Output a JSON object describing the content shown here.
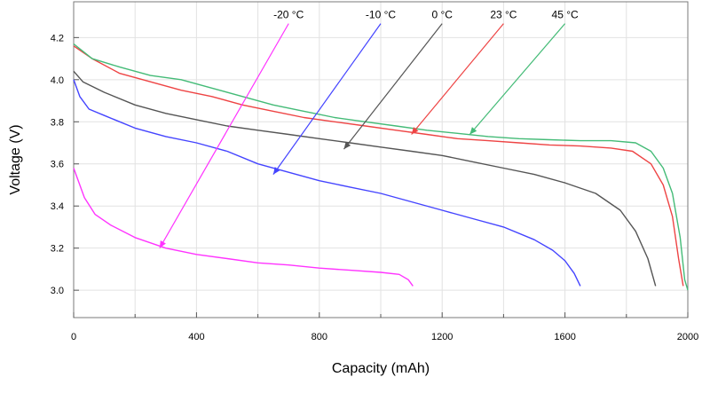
{
  "chart_data": {
    "type": "line",
    "title": "",
    "xlabel": "Capacity (mAh)",
    "ylabel": "Voltage (V)",
    "xlim": [
      0,
      2000
    ],
    "ylim": [
      2.87,
      4.37
    ],
    "x_ticks": [
      0,
      400,
      800,
      1200,
      1600,
      2000
    ],
    "x_minor_ticks": [
      200,
      600,
      1000,
      1400,
      1800
    ],
    "y_ticks": [
      3.0,
      3.2,
      3.4,
      3.6,
      3.8,
      4.0,
      4.2
    ],
    "x_tick_labels": [
      "0",
      "400",
      "800",
      "1200",
      "1600",
      "2000"
    ],
    "y_tick_labels": [
      "3.0",
      "3.2",
      "3.4",
      "3.6",
      "3.8",
      "4.0",
      "4.2"
    ],
    "grid": true,
    "series": [
      {
        "name": "-20 °C",
        "color": "#ff33ff",
        "points": [
          [
            0,
            3.58
          ],
          [
            15,
            3.52
          ],
          [
            35,
            3.44
          ],
          [
            70,
            3.36
          ],
          [
            120,
            3.31
          ],
          [
            200,
            3.25
          ],
          [
            300,
            3.2
          ],
          [
            400,
            3.17
          ],
          [
            500,
            3.15
          ],
          [
            600,
            3.13
          ],
          [
            700,
            3.12
          ],
          [
            800,
            3.105
          ],
          [
            900,
            3.095
          ],
          [
            1000,
            3.085
          ],
          [
            1060,
            3.075
          ],
          [
            1090,
            3.05
          ],
          [
            1105,
            3.02
          ]
        ],
        "label_anchor": [
          700,
          4.3
        ],
        "arrow_tip": [
          280,
          3.2
        ]
      },
      {
        "name": "-10 °C",
        "color": "#4444ff",
        "points": [
          [
            0,
            4.0
          ],
          [
            20,
            3.92
          ],
          [
            50,
            3.86
          ],
          [
            100,
            3.83
          ],
          [
            200,
            3.77
          ],
          [
            300,
            3.73
          ],
          [
            400,
            3.7
          ],
          [
            500,
            3.66
          ],
          [
            600,
            3.6
          ],
          [
            700,
            3.56
          ],
          [
            800,
            3.52
          ],
          [
            900,
            3.49
          ],
          [
            1000,
            3.46
          ],
          [
            1100,
            3.42
          ],
          [
            1200,
            3.38
          ],
          [
            1300,
            3.34
          ],
          [
            1400,
            3.3
          ],
          [
            1500,
            3.24
          ],
          [
            1560,
            3.19
          ],
          [
            1600,
            3.14
          ],
          [
            1630,
            3.08
          ],
          [
            1650,
            3.02
          ]
        ],
        "label_anchor": [
          1000,
          4.3
        ],
        "arrow_tip": [
          650,
          3.55
        ]
      },
      {
        "name": "0 °C",
        "color": "#555555",
        "points": [
          [
            0,
            4.04
          ],
          [
            30,
            3.99
          ],
          [
            100,
            3.94
          ],
          [
            200,
            3.88
          ],
          [
            300,
            3.84
          ],
          [
            400,
            3.81
          ],
          [
            500,
            3.78
          ],
          [
            600,
            3.76
          ],
          [
            700,
            3.74
          ],
          [
            800,
            3.72
          ],
          [
            900,
            3.7
          ],
          [
            1000,
            3.68
          ],
          [
            1100,
            3.66
          ],
          [
            1200,
            3.64
          ],
          [
            1300,
            3.61
          ],
          [
            1400,
            3.58
          ],
          [
            1500,
            3.55
          ],
          [
            1600,
            3.51
          ],
          [
            1700,
            3.46
          ],
          [
            1780,
            3.38
          ],
          [
            1830,
            3.28
          ],
          [
            1870,
            3.15
          ],
          [
            1895,
            3.02
          ]
        ],
        "label_anchor": [
          1200,
          4.3
        ],
        "arrow_tip": [
          880,
          3.67
        ]
      },
      {
        "name": "23 °C",
        "color": "#ee4444",
        "points": [
          [
            0,
            4.16
          ],
          [
            60,
            4.1
          ],
          [
            150,
            4.03
          ],
          [
            250,
            3.99
          ],
          [
            350,
            3.95
          ],
          [
            450,
            3.92
          ],
          [
            550,
            3.88
          ],
          [
            650,
            3.85
          ],
          [
            750,
            3.82
          ],
          [
            850,
            3.8
          ],
          [
            950,
            3.78
          ],
          [
            1050,
            3.76
          ],
          [
            1150,
            3.74
          ],
          [
            1250,
            3.72
          ],
          [
            1350,
            3.71
          ],
          [
            1450,
            3.7
          ],
          [
            1550,
            3.69
          ],
          [
            1650,
            3.685
          ],
          [
            1750,
            3.675
          ],
          [
            1820,
            3.66
          ],
          [
            1880,
            3.6
          ],
          [
            1920,
            3.5
          ],
          [
            1950,
            3.35
          ],
          [
            1970,
            3.15
          ],
          [
            1985,
            3.02
          ]
        ],
        "label_anchor": [
          1400,
          4.3
        ],
        "arrow_tip": [
          1100,
          3.74
        ]
      },
      {
        "name": "45 °C",
        "color": "#44bb77",
        "points": [
          [
            0,
            4.17
          ],
          [
            60,
            4.1
          ],
          [
            150,
            4.06
          ],
          [
            250,
            4.02
          ],
          [
            350,
            4.0
          ],
          [
            450,
            3.96
          ],
          [
            550,
            3.92
          ],
          [
            650,
            3.88
          ],
          [
            750,
            3.85
          ],
          [
            850,
            3.82
          ],
          [
            950,
            3.8
          ],
          [
            1050,
            3.78
          ],
          [
            1150,
            3.76
          ],
          [
            1250,
            3.745
          ],
          [
            1350,
            3.73
          ],
          [
            1450,
            3.72
          ],
          [
            1550,
            3.715
          ],
          [
            1650,
            3.71
          ],
          [
            1750,
            3.71
          ],
          [
            1830,
            3.7
          ],
          [
            1880,
            3.66
          ],
          [
            1920,
            3.58
          ],
          [
            1950,
            3.46
          ],
          [
            1975,
            3.25
          ],
          [
            1990,
            3.05
          ],
          [
            2000,
            3.0
          ]
        ],
        "label_anchor": [
          1600,
          4.3
        ],
        "arrow_tip": [
          1290,
          3.74
        ]
      }
    ]
  }
}
